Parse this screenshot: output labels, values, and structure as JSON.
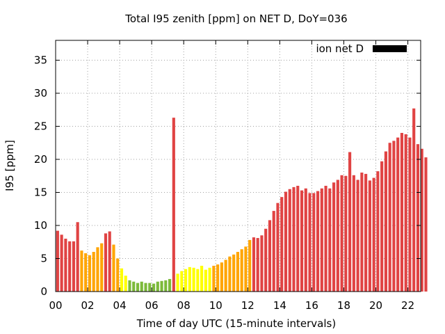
{
  "chart_data": {
    "type": "bar",
    "title": "Total I95 zenith [ppm] on NET D, DoY=036",
    "xlabel": "Time of day UTC (15-minute intervals)",
    "ylabel": "I95 [ppm]",
    "xlim": [
      0,
      22.8
    ],
    "ylim": [
      0,
      38
    ],
    "xticks": [
      0,
      2,
      4,
      6,
      8,
      10,
      12,
      14,
      16,
      18,
      20,
      22
    ],
    "xtick_labels": [
      "00",
      "02",
      "04",
      "06",
      "08",
      "10",
      "12",
      "14",
      "16",
      "18",
      "20",
      "22"
    ],
    "yticks": [
      0,
      5,
      10,
      15,
      20,
      25,
      30,
      35
    ],
    "ytick_labels": [
      "0",
      "5",
      "10",
      "15",
      "20",
      "25",
      "30",
      "35"
    ],
    "interval_hours": 0.25,
    "grid": true,
    "legend": {
      "label": "ion net D",
      "position": "top-right",
      "color": "#000000"
    },
    "colors": {
      "red": "#e04343",
      "orange": "#ffa500",
      "yellow": "#ffff00",
      "green": "#7dba3a"
    },
    "values": [
      9.2,
      8.6,
      8.0,
      7.6,
      7.6,
      10.5,
      6.2,
      5.8,
      5.5,
      6.0,
      6.7,
      7.3,
      8.8,
      9.1,
      7.1,
      5.0,
      3.5,
      2.4,
      1.7,
      1.5,
      1.3,
      1.5,
      1.3,
      1.3,
      1.2,
      1.5,
      1.6,
      1.7,
      1.9,
      26.3,
      2.7,
      3.1,
      3.4,
      3.7,
      3.6,
      3.4,
      3.9,
      3.3,
      3.6,
      3.9,
      4.1,
      4.4,
      4.8,
      5.3,
      5.6,
      6.0,
      6.4,
      6.8,
      7.8,
      8.2,
      8.1,
      8.5,
      9.5,
      10.8,
      12.2,
      13.4,
      14.3,
      15.1,
      15.5,
      15.8,
      16.0,
      15.3,
      15.6,
      14.9,
      14.9,
      15.2,
      15.6,
      16.0,
      15.6,
      16.5,
      16.9,
      17.6,
      17.5,
      21.1,
      17.6,
      16.9,
      18.0,
      17.8,
      16.8,
      17.2,
      18.2,
      19.7,
      21.2,
      22.5,
      22.8,
      23.3,
      24.0,
      23.8,
      23.3,
      27.7,
      22.3,
      21.6,
      20.3
    ],
    "bar_colors": [
      "red",
      "red",
      "red",
      "red",
      "red",
      "red",
      "orange",
      "orange",
      "orange",
      "orange",
      "orange",
      "orange",
      "red",
      "red",
      "orange",
      "orange",
      "yellow",
      "yellow",
      "green",
      "green",
      "green",
      "green",
      "green",
      "green",
      "green",
      "green",
      "green",
      "green",
      "green",
      "red",
      "yellow",
      "yellow",
      "yellow",
      "yellow",
      "yellow",
      "yellow",
      "yellow",
      "yellow",
      "yellow",
      "orange",
      "orange",
      "orange",
      "orange",
      "orange",
      "orange",
      "orange",
      "orange",
      "orange",
      "orange",
      "red",
      "red",
      "red",
      "red",
      "red",
      "red",
      "red",
      "red",
      "red",
      "red",
      "red",
      "red",
      "red",
      "red",
      "red",
      "red",
      "red",
      "red",
      "red",
      "red",
      "red",
      "red",
      "red",
      "red",
      "red",
      "red",
      "red",
      "red",
      "red",
      "red",
      "red",
      "red",
      "red",
      "red",
      "red",
      "red",
      "red",
      "red",
      "red",
      "red",
      "red",
      "red",
      "red",
      "red"
    ]
  }
}
